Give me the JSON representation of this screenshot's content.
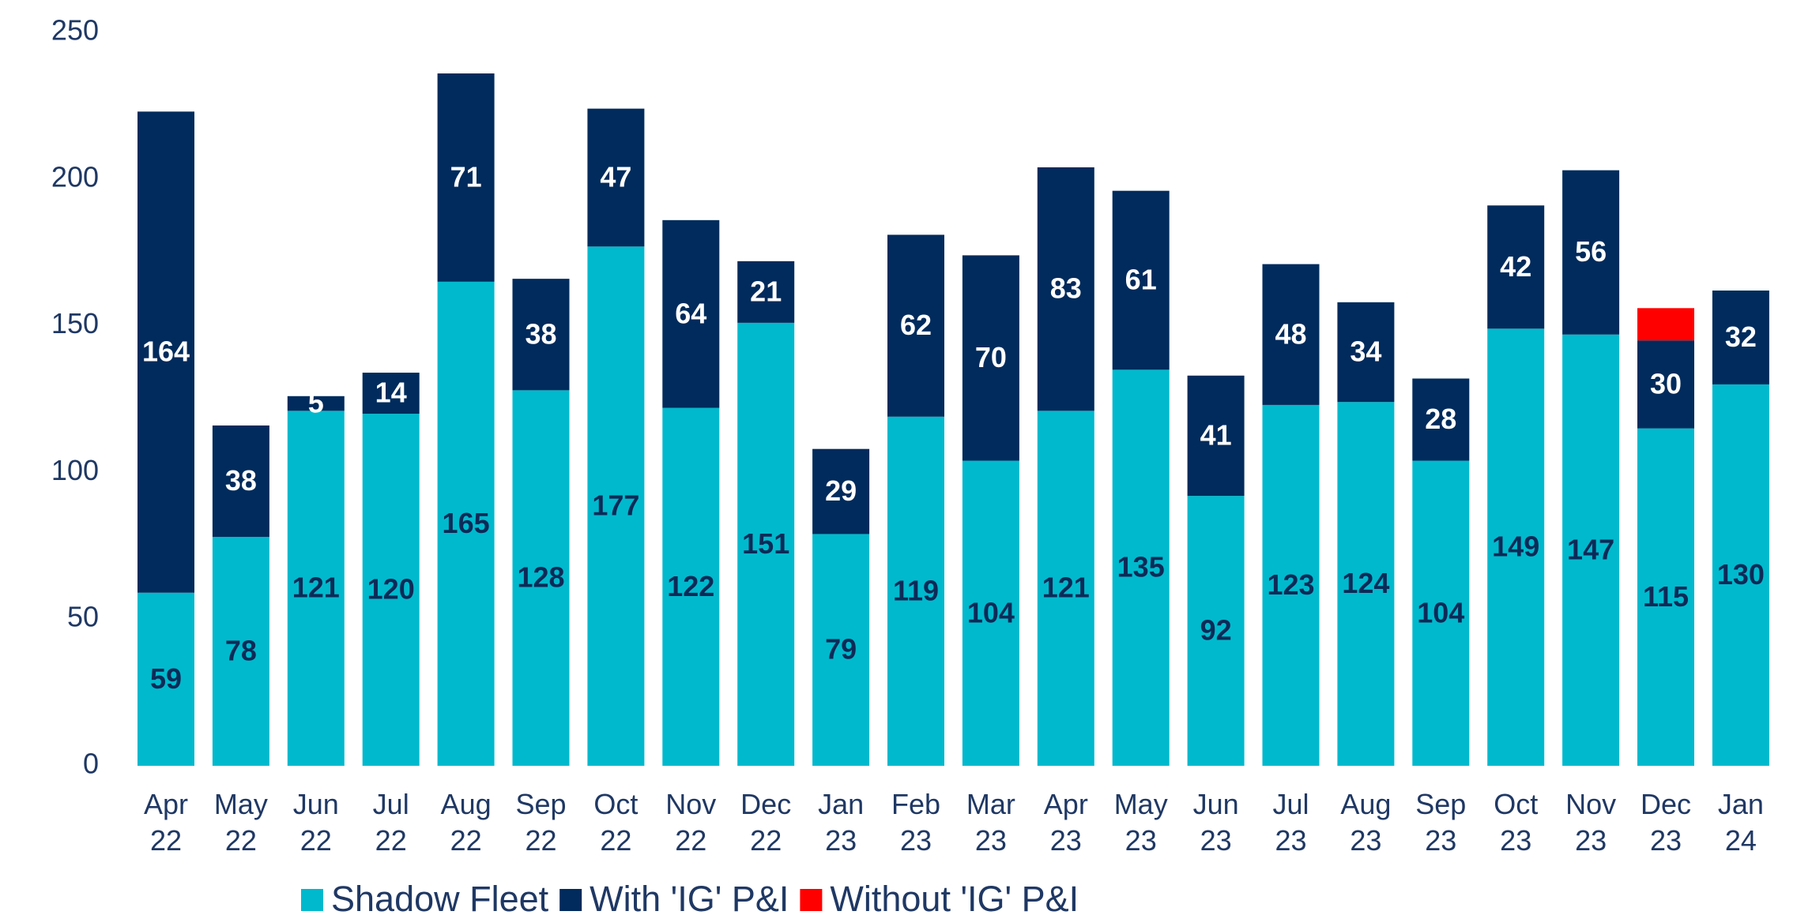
{
  "chart_data": {
    "type": "stacked_bar",
    "categories": [
      "Apr 22",
      "May 22",
      "Jun 22",
      "Jul 22",
      "Aug 22",
      "Sep 22",
      "Oct 22",
      "Nov 22",
      "Dec 22",
      "Jan 23",
      "Feb 23",
      "Mar 23",
      "Apr 23",
      "May 23",
      "Jun 23",
      "Jul 23",
      "Aug 23",
      "Sep 23",
      "Oct 23",
      "Nov 23",
      "Dec 23",
      "Jan 24"
    ],
    "series": [
      {
        "name": "Shadow Fleet",
        "color": "#00b9cd",
        "label_color": "#0c2a57",
        "data_labels": true,
        "values": [
          59,
          78,
          121,
          120,
          165,
          128,
          177,
          122,
          151,
          79,
          119,
          104,
          121,
          135,
          92,
          123,
          124,
          104,
          149,
          147,
          115,
          130
        ]
      },
      {
        "name": "With 'IG' P&I",
        "color": "#002b5c",
        "label_color": "#ffffff",
        "data_labels": true,
        "values": [
          164,
          38,
          5,
          14,
          71,
          38,
          47,
          64,
          21,
          29,
          62,
          70,
          83,
          61,
          41,
          48,
          34,
          28,
          42,
          56,
          30,
          32
        ]
      },
      {
        "name": "Without 'IG' P&I",
        "color": "#ff0000",
        "data_labels": false,
        "values": [
          null,
          null,
          null,
          null,
          null,
          null,
          null,
          null,
          null,
          null,
          null,
          null,
          null,
          null,
          null,
          null,
          null,
          null,
          null,
          null,
          11,
          null
        ]
      }
    ],
    "ylim": [
      0,
      250
    ],
    "yticks": [
      0,
      50,
      100,
      150,
      200,
      250
    ],
    "grid": false
  }
}
